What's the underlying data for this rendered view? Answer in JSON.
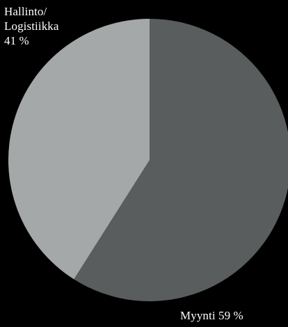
{
  "chart_data": {
    "type": "pie",
    "slices": [
      {
        "name": "Myynti",
        "value": 59,
        "label_lines": [
          "Myynti 59 %"
        ],
        "color": "#595d5d"
      },
      {
        "name": "Hallinto/ Logistiikka",
        "value": 41,
        "label_lines": [
          "Hallinto/",
          "Logistiikka",
          "41 %"
        ],
        "color": "#a5a8a8"
      }
    ],
    "background": "#000000",
    "legend": "none",
    "start_angle": "12 o'clock",
    "direction": "clockwise"
  }
}
